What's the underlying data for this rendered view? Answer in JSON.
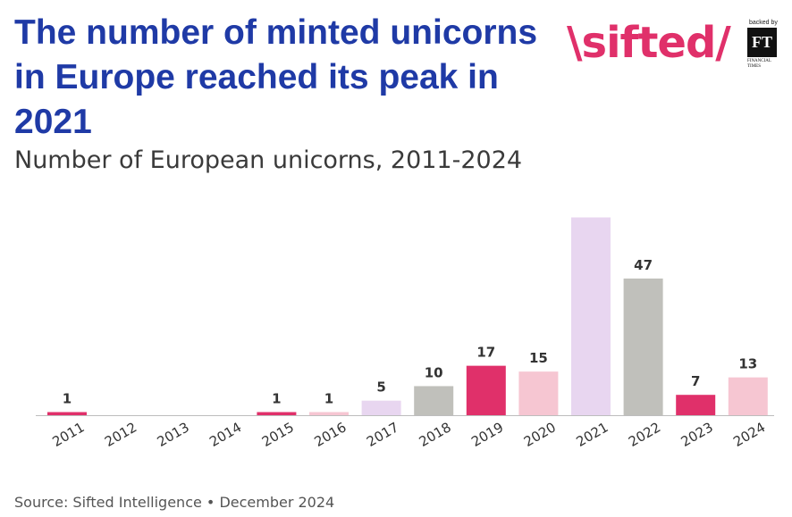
{
  "title": "The number of minted unicorns in Europe reached its peak in 2021",
  "subtitle": "Number of European unicorns, 2011-2024",
  "source": "Source: Sifted Intelligence • December 2024",
  "logo": {
    "wordmark": "\\sifted/",
    "backed_by": "backed by",
    "ft_mark": "FT",
    "ft_name": "FINANCIAL TIMES"
  },
  "colors": {
    "title": "#1f3aa6",
    "brand": "#e0306a"
  },
  "chart_data": {
    "type": "bar",
    "title": "The number of minted unicorns in Europe reached its peak in 2021",
    "subtitle": "Number of European unicorns, 2011-2024",
    "categories": [
      "2011",
      "2012",
      "2013",
      "2014",
      "2015",
      "2016",
      "2017",
      "2018",
      "2019",
      "2020",
      "2021",
      "2022",
      "2023",
      "2024"
    ],
    "values": [
      1,
      0,
      0,
      0,
      1,
      1,
      5,
      10,
      17,
      15,
      68,
      47,
      7,
      13
    ],
    "value_labels": [
      "1",
      "",
      "",
      "",
      "1",
      "1",
      "5",
      "10",
      "17",
      "15",
      "",
      "47",
      "7",
      "13"
    ],
    "bar_colors": [
      "#e0306a",
      "#e0306a",
      "#e0306a",
      "#e0306a",
      "#e0306a",
      "#f6c6d2",
      "#e8d6f0",
      "#c0c0bb",
      "#e0306a",
      "#f6c6d2",
      "#e8d6f0",
      "#c0c0bb",
      "#e0306a",
      "#f6c6d2"
    ],
    "ylim": [
      0,
      70
    ],
    "grid": false,
    "xlabel": "",
    "ylabel": ""
  }
}
